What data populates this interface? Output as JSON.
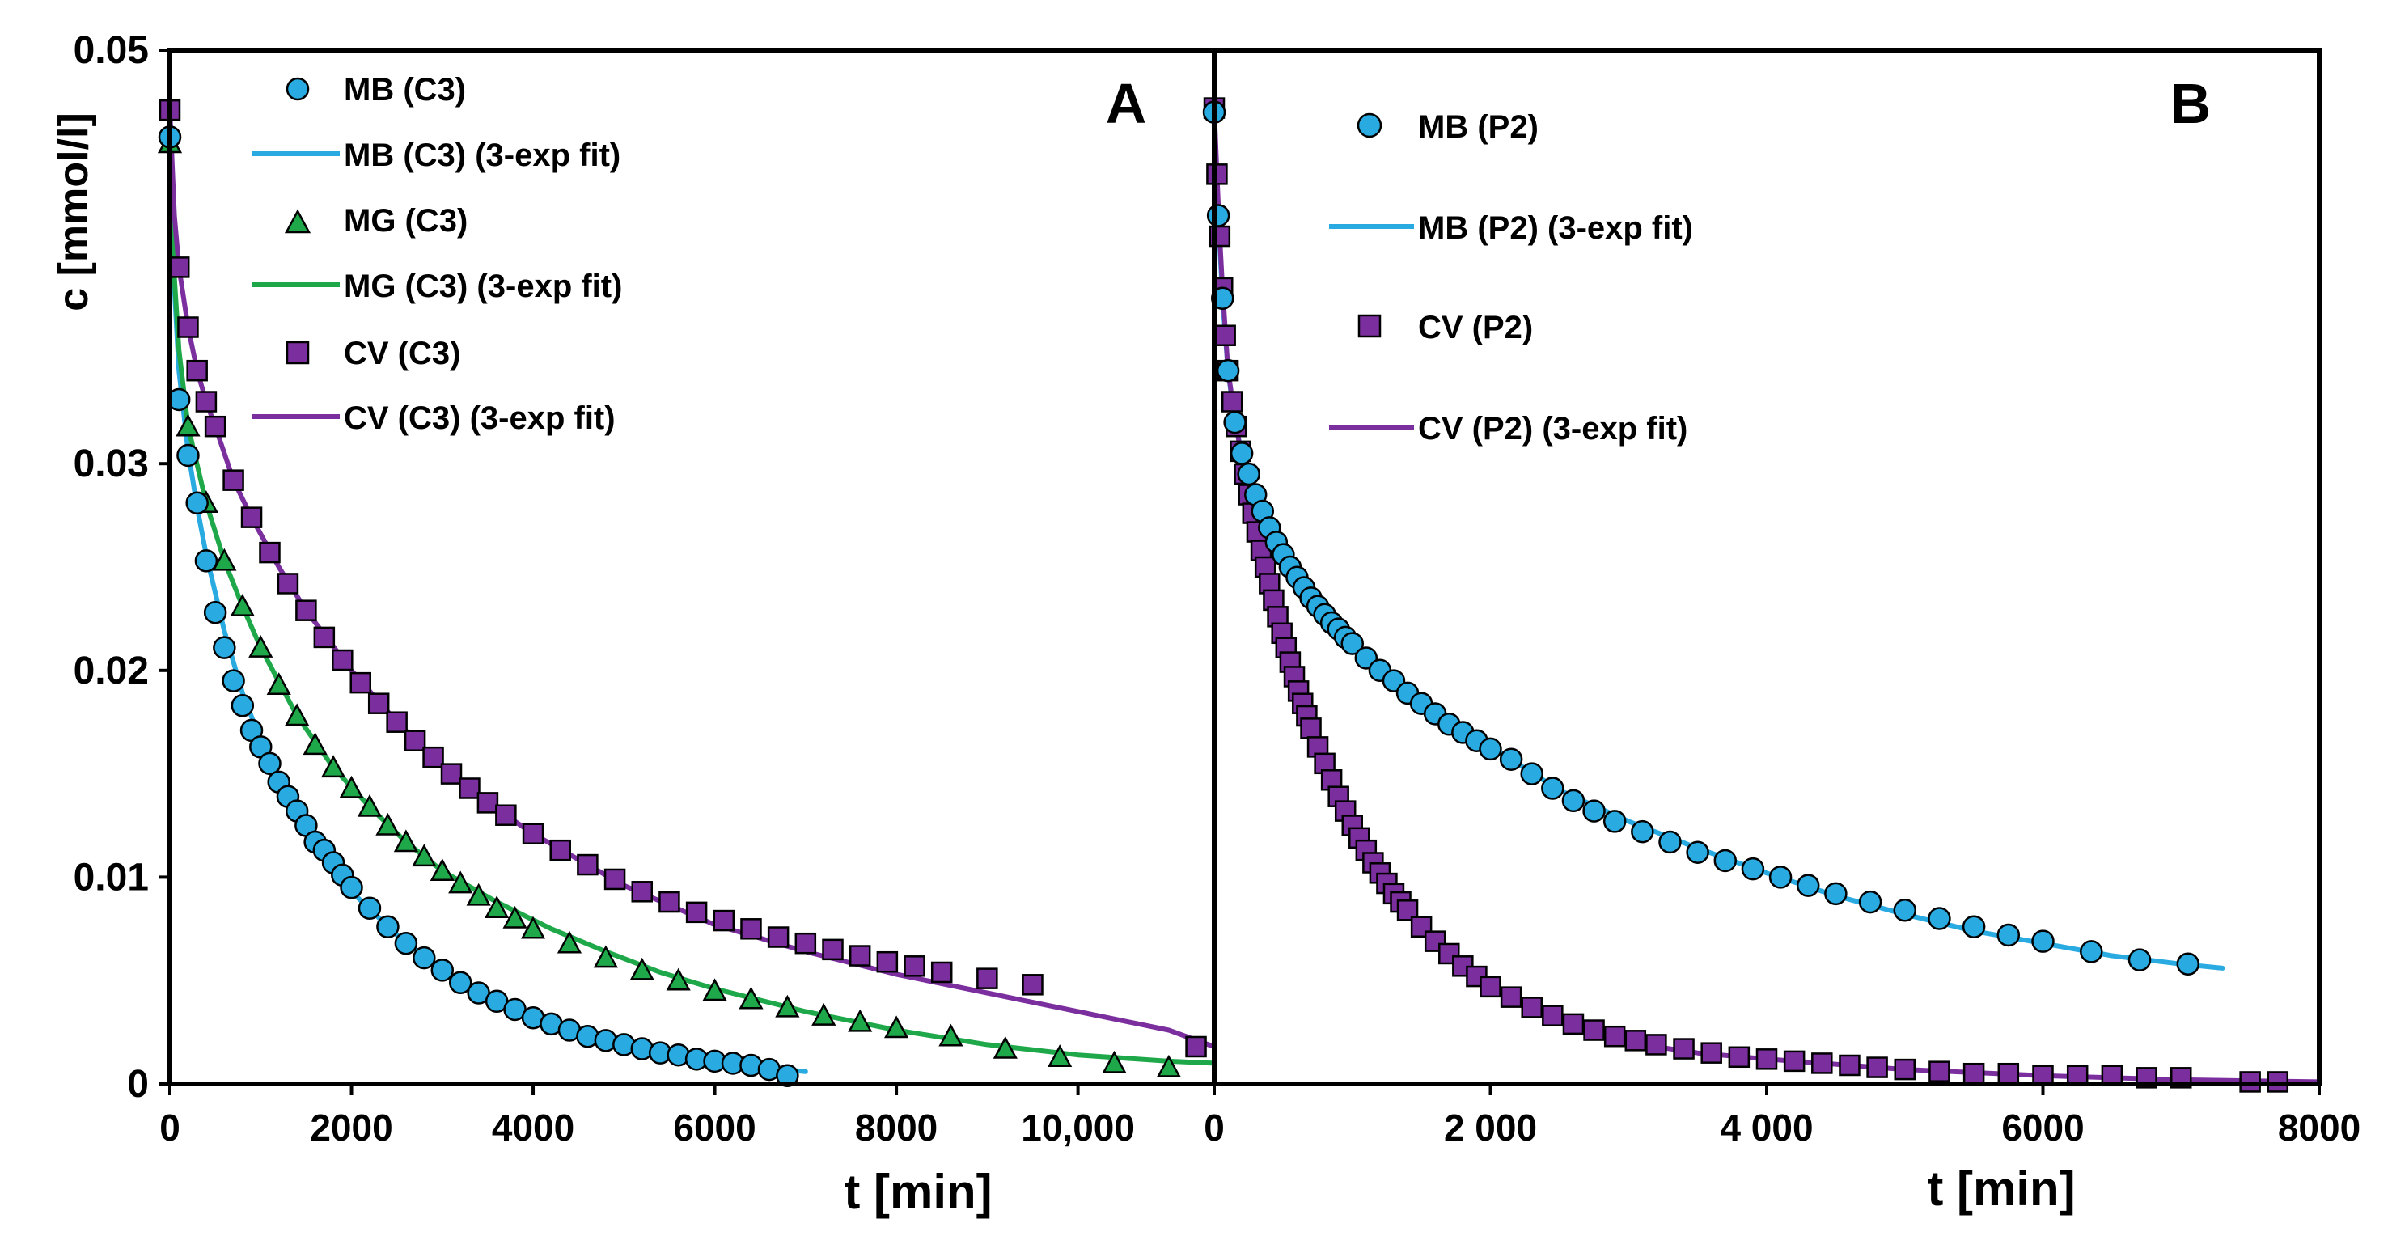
{
  "colors": {
    "mb": "#29ABE2",
    "mg": "#1FA84A",
    "cv": "#7B2F9E",
    "outline": "#000000"
  },
  "chart_data": [
    {
      "panel": "A",
      "type": "scatter",
      "panel_label": "A",
      "xlabel": "t [min]",
      "ylabel": "c [mmol/l]",
      "xlim": [
        0,
        11500
      ],
      "ylim": [
        0,
        0.05
      ],
      "x_ticks": [
        0,
        2000,
        4000,
        6000,
        8000,
        10000
      ],
      "x_tick_labels": [
        "0",
        "2000",
        "4000",
        "6000",
        "8000",
        "10,000"
      ],
      "y_ticks": [
        0,
        0.01,
        0.02,
        0.03,
        0.05
      ],
      "y_tick_labels": [
        "0",
        "0.01",
        "0.02",
        "0.03",
        "0.05"
      ],
      "legend_position": "top-left",
      "series": [
        {
          "name": "MB (C3)",
          "fit_name": "MB (C3) (3-exp fit)",
          "marker": "circle",
          "color_key": "mb",
          "x": [
            0,
            100,
            200,
            300,
            400,
            500,
            600,
            700,
            800,
            900,
            1000,
            1100,
            1200,
            1300,
            1400,
            1500,
            1600,
            1700,
            1800,
            1900,
            2000,
            2200,
            2400,
            2600,
            2800,
            3000,
            3200,
            3400,
            3600,
            3800,
            4000,
            4200,
            4400,
            4600,
            4800,
            5000,
            5200,
            5400,
            5600,
            5800,
            6000,
            6200,
            6400,
            6600,
            6800
          ],
          "y": [
            0.0458,
            0.0331,
            0.0304,
            0.0281,
            0.0253,
            0.0228,
            0.0211,
            0.0195,
            0.0183,
            0.0171,
            0.0163,
            0.0155,
            0.0146,
            0.0139,
            0.0132,
            0.0125,
            0.0117,
            0.0113,
            0.0107,
            0.0101,
            0.0095,
            0.0085,
            0.0076,
            0.0068,
            0.0061,
            0.0055,
            0.0049,
            0.0044,
            0.004,
            0.0036,
            0.0032,
            0.0029,
            0.0026,
            0.0023,
            0.0021,
            0.0019,
            0.0017,
            0.0015,
            0.0014,
            0.0012,
            0.0011,
            0.001,
            0.0009,
            0.0007,
            0.0004
          ]
        },
        {
          "name": "MG (C3)",
          "fit_name": "MG (C3) (3-exp fit)",
          "marker": "triangle",
          "color_key": "mg",
          "x": [
            0,
            200,
            400,
            600,
            800,
            1000,
            1200,
            1400,
            1600,
            1800,
            2000,
            2200,
            2400,
            2600,
            2800,
            3000,
            3200,
            3400,
            3600,
            3800,
            4000,
            4400,
            4800,
            5200,
            5600,
            6000,
            6400,
            6800,
            7200,
            7600,
            8000,
            8600,
            9200,
            9800,
            10400,
            11000
          ],
          "y": [
            0.0455,
            0.0318,
            0.0281,
            0.0253,
            0.0231,
            0.0211,
            0.0193,
            0.0178,
            0.0164,
            0.0153,
            0.0143,
            0.0134,
            0.0125,
            0.0117,
            0.011,
            0.0103,
            0.0097,
            0.0091,
            0.0085,
            0.008,
            0.0075,
            0.0068,
            0.0061,
            0.0055,
            0.005,
            0.0045,
            0.0041,
            0.0037,
            0.0033,
            0.003,
            0.0027,
            0.0023,
            0.0017,
            0.0013,
            0.001,
            0.0008
          ]
        },
        {
          "name": "CV (C3)",
          "fit_name": "CV (C3) (3-exp fit)",
          "marker": "square",
          "color_key": "cv",
          "x": [
            0,
            100,
            200,
            300,
            400,
            500,
            700,
            900,
            1100,
            1300,
            1500,
            1700,
            1900,
            2100,
            2300,
            2500,
            2700,
            2900,
            3100,
            3300,
            3500,
            3700,
            4000,
            4300,
            4600,
            4900,
            5200,
            5500,
            5800,
            6100,
            6400,
            6700,
            7000,
            7300,
            7600,
            7900,
            8200,
            8500,
            9000,
            9500,
            11300
          ],
          "y": [
            0.0471,
            0.0395,
            0.0366,
            0.0345,
            0.033,
            0.0318,
            0.0292,
            0.0274,
            0.0257,
            0.0242,
            0.0229,
            0.0216,
            0.0205,
            0.0194,
            0.0184,
            0.0175,
            0.0166,
            0.0158,
            0.015,
            0.0143,
            0.0136,
            0.013,
            0.0121,
            0.0113,
            0.0106,
            0.0099,
            0.0093,
            0.0088,
            0.0083,
            0.0079,
            0.0075,
            0.0071,
            0.0068,
            0.0065,
            0.0062,
            0.0059,
            0.0057,
            0.0054,
            0.0051,
            0.0048,
            0.0018
          ]
        }
      ],
      "fits": [
        {
          "name": "MB (C3) (3-exp fit)",
          "color_key": "mb",
          "x_end": 7000,
          "x": [
            0,
            50,
            100,
            200,
            300,
            400,
            600,
            800,
            1000,
            1300,
            1600,
            2000,
            2500,
            3000,
            3500,
            4000,
            4500,
            5000,
            5500,
            6000,
            6500,
            7000
          ],
          "y": [
            0.0458,
            0.0385,
            0.0345,
            0.0306,
            0.0279,
            0.0256,
            0.0219,
            0.0189,
            0.0166,
            0.0137,
            0.0114,
            0.0093,
            0.0072,
            0.0055,
            0.0042,
            0.0032,
            0.0025,
            0.0019,
            0.0014,
            0.0011,
            0.0008,
            0.0006
          ]
        },
        {
          "name": "MG (C3) (3-exp fit)",
          "color_key": "mg",
          "x_end": 11500,
          "x": [
            0,
            50,
            100,
            200,
            400,
            600,
            800,
            1000,
            1400,
            1800,
            2200,
            2600,
            3000,
            3600,
            4200,
            4800,
            5400,
            6000,
            7000,
            8000,
            9000,
            10000,
            11000,
            11500
          ],
          "y": [
            0.0455,
            0.039,
            0.0355,
            0.0318,
            0.0281,
            0.0253,
            0.0231,
            0.0211,
            0.0178,
            0.0153,
            0.0134,
            0.0117,
            0.0103,
            0.0088,
            0.0075,
            0.0064,
            0.0054,
            0.0046,
            0.0035,
            0.0026,
            0.0019,
            0.0014,
            0.0011,
            0.001
          ]
        },
        {
          "name": "CV (C3) (3-exp fit)",
          "color_key": "cv",
          "x_end": 11500,
          "x": [
            0,
            50,
            100,
            200,
            300,
            400,
            500,
            700,
            900,
            1200,
            1500,
            2000,
            2500,
            3000,
            3500,
            4000,
            5000,
            6000,
            7000,
            8000,
            9000,
            10000,
            11000,
            11500
          ],
          "y": [
            0.0471,
            0.042,
            0.0395,
            0.0366,
            0.0345,
            0.033,
            0.0318,
            0.0292,
            0.0274,
            0.025,
            0.0229,
            0.02,
            0.0175,
            0.0154,
            0.0136,
            0.0121,
            0.0096,
            0.0077,
            0.0064,
            0.0053,
            0.0044,
            0.0035,
            0.0026,
            0.0018
          ]
        }
      ]
    },
    {
      "panel": "B",
      "type": "scatter",
      "panel_label": "B",
      "xlabel": "t [min]",
      "ylabel": "",
      "xlim": [
        0,
        8000
      ],
      "ylim": [
        0,
        0.05
      ],
      "x_ticks": [
        0,
        2000,
        4000,
        6000,
        8000
      ],
      "x_tick_labels": [
        "0",
        "2 000",
        "4 000",
        "6000",
        "8000"
      ],
      "legend_position": "top-left",
      "series": [
        {
          "name": "MB (P2)",
          "fit_name": "MB (P2) (3-exp fit)",
          "marker": "circle",
          "color_key": "mb",
          "x": [
            0,
            30,
            60,
            100,
            150,
            200,
            250,
            300,
            350,
            400,
            450,
            500,
            550,
            600,
            650,
            700,
            750,
            800,
            850,
            900,
            950,
            1000,
            1100,
            1200,
            1300,
            1400,
            1500,
            1600,
            1700,
            1800,
            1900,
            2000,
            2150,
            2300,
            2450,
            2600,
            2750,
            2900,
            3100,
            3300,
            3500,
            3700,
            3900,
            4100,
            4300,
            4500,
            4750,
            5000,
            5250,
            5500,
            5750,
            6000,
            6350,
            6700,
            7050
          ],
          "y": [
            0.047,
            0.042,
            0.038,
            0.0345,
            0.032,
            0.0305,
            0.0295,
            0.0285,
            0.0277,
            0.0269,
            0.0262,
            0.0256,
            0.025,
            0.0245,
            0.024,
            0.0235,
            0.0231,
            0.0227,
            0.0223,
            0.022,
            0.0216,
            0.0213,
            0.0206,
            0.02,
            0.0195,
            0.0189,
            0.0184,
            0.0179,
            0.0174,
            0.017,
            0.0166,
            0.0162,
            0.0157,
            0.015,
            0.0143,
            0.0137,
            0.0132,
            0.0127,
            0.0122,
            0.0117,
            0.0112,
            0.0108,
            0.0104,
            0.01,
            0.0096,
            0.0092,
            0.0088,
            0.0084,
            0.008,
            0.0076,
            0.0072,
            0.0069,
            0.0064,
            0.006,
            0.0058
          ]
        },
        {
          "name": "CV (P2)",
          "fit_name": "CV (P2) (3-exp fit)",
          "marker": "square",
          "color_key": "cv",
          "x": [
            0,
            20,
            40,
            60,
            80,
            100,
            130,
            160,
            190,
            220,
            250,
            280,
            310,
            340,
            370,
            400,
            430,
            460,
            490,
            520,
            550,
            580,
            610,
            640,
            670,
            700,
            750,
            800,
            850,
            900,
            950,
            1000,
            1050,
            1100,
            1150,
            1200,
            1250,
            1300,
            1350,
            1400,
            1500,
            1600,
            1700,
            1800,
            1900,
            2000,
            2150,
            2300,
            2450,
            2600,
            2750,
            2900,
            3050,
            3200,
            3400,
            3600,
            3800,
            4000,
            4200,
            4400,
            4600,
            4800,
            5000,
            5250,
            5500,
            5750,
            6000,
            6250,
            6500,
            6750,
            7000,
            7500,
            7700
          ],
          "y": [
            0.0472,
            0.044,
            0.041,
            0.0385,
            0.0362,
            0.0345,
            0.033,
            0.0318,
            0.0306,
            0.0295,
            0.0285,
            0.0276,
            0.0267,
            0.0258,
            0.025,
            0.0242,
            0.0234,
            0.0226,
            0.0218,
            0.0211,
            0.0204,
            0.0197,
            0.019,
            0.0184,
            0.0178,
            0.0172,
            0.0163,
            0.0155,
            0.0147,
            0.0139,
            0.0132,
            0.0125,
            0.0119,
            0.0113,
            0.0107,
            0.0102,
            0.0097,
            0.0092,
            0.0088,
            0.0084,
            0.0076,
            0.0069,
            0.0063,
            0.0057,
            0.0052,
            0.0047,
            0.0042,
            0.0037,
            0.0033,
            0.0029,
            0.0026,
            0.0023,
            0.0021,
            0.0019,
            0.0017,
            0.0015,
            0.0013,
            0.0012,
            0.0011,
            0.001,
            0.0009,
            0.0008,
            0.0007,
            0.0006,
            0.0005,
            0.0005,
            0.0004,
            0.0004,
            0.0004,
            0.0003,
            0.0003,
            0.0001,
            0.0001
          ]
        }
      ],
      "fits": [
        {
          "name": "MB (P2) (3-exp fit)",
          "color_key": "mb",
          "x_end": 7300,
          "x": [
            0,
            30,
            60,
            100,
            150,
            200,
            300,
            400,
            500,
            600,
            800,
            1000,
            1200,
            1500,
            1800,
            2100,
            2500,
            3000,
            3500,
            4000,
            4500,
            5000,
            5500,
            6000,
            6500,
            7000,
            7300
          ],
          "y": [
            0.047,
            0.042,
            0.038,
            0.0345,
            0.032,
            0.0305,
            0.0285,
            0.0269,
            0.0256,
            0.0245,
            0.0227,
            0.0213,
            0.02,
            0.0184,
            0.017,
            0.0159,
            0.0142,
            0.0127,
            0.0114,
            0.0102,
            0.0091,
            0.0082,
            0.0074,
            0.0068,
            0.0062,
            0.0058,
            0.0056
          ]
        },
        {
          "name": "CV (P2) (3-exp fit)",
          "color_key": "cv",
          "x_end": 8000,
          "x": [
            0,
            20,
            40,
            60,
            100,
            160,
            220,
            300,
            400,
            500,
            600,
            700,
            800,
            1000,
            1200,
            1400,
            1700,
            2000,
            2500,
            3000,
            3500,
            4000,
            5000,
            6000,
            7000,
            8000
          ],
          "y": [
            0.0472,
            0.044,
            0.041,
            0.0385,
            0.0345,
            0.0318,
            0.0295,
            0.0271,
            0.0242,
            0.0215,
            0.0192,
            0.0172,
            0.0155,
            0.0125,
            0.0102,
            0.0084,
            0.0062,
            0.0047,
            0.003,
            0.002,
            0.0015,
            0.0012,
            0.0007,
            0.0004,
            0.0002,
            0.0001
          ]
        }
      ]
    }
  ]
}
